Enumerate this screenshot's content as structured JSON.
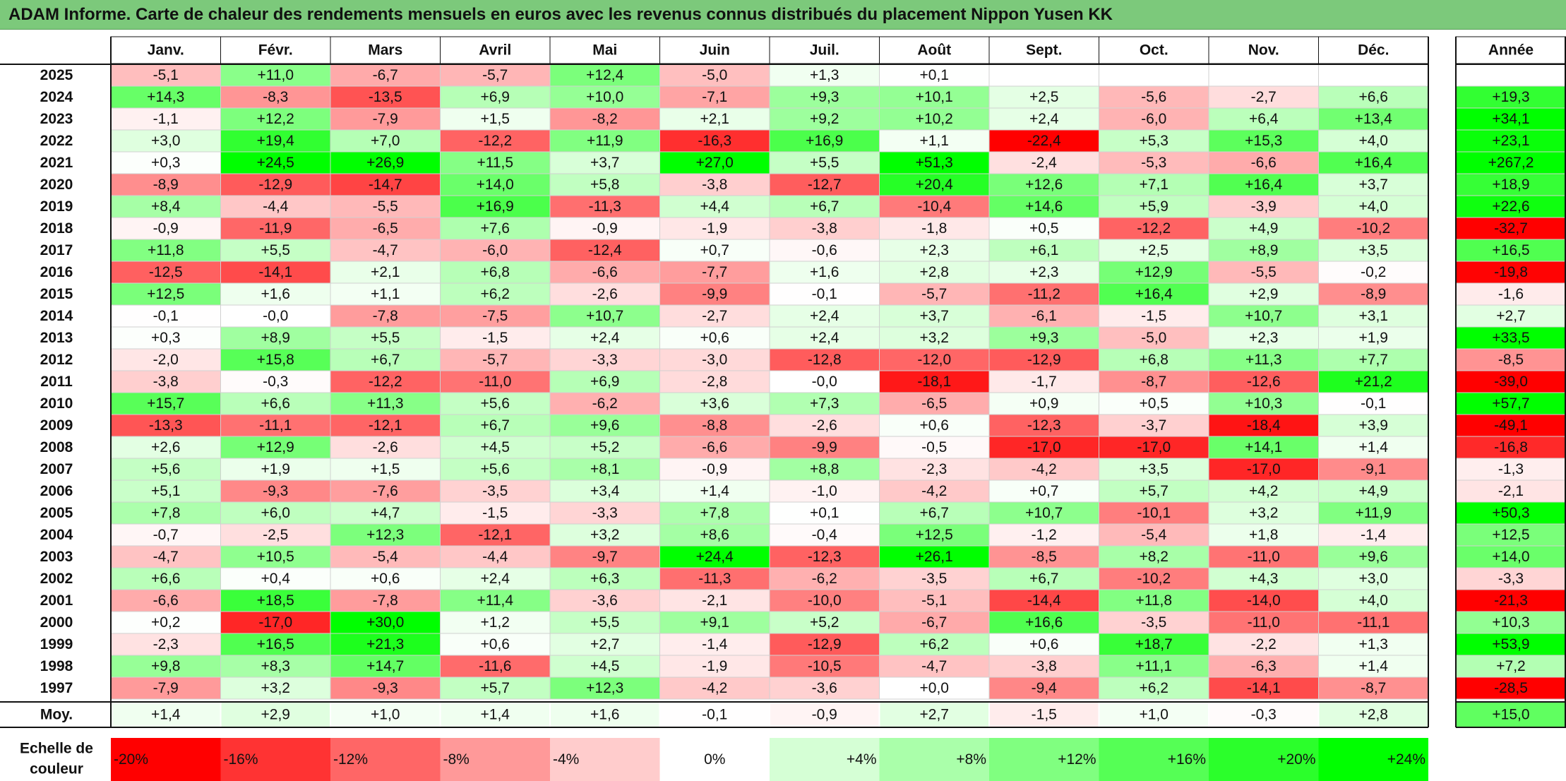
{
  "title": "ADAM Informe. Carte de chaleur des rendements mensuels en euros avec les revenus connus distribués du placement Nippon Yusen KK",
  "chart_data": {
    "type": "heatmap",
    "columns": [
      "Janv.",
      "Févr.",
      "Mars",
      "Avril",
      "Mai",
      "Juin",
      "Juil.",
      "Août",
      "Sept.",
      "Oct.",
      "Nov.",
      "Déc."
    ],
    "year_column": "Année",
    "years": [
      "2025",
      "2024",
      "2023",
      "2022",
      "2021",
      "2020",
      "2019",
      "2018",
      "2017",
      "2016",
      "2015",
      "2014",
      "2013",
      "2012",
      "2011",
      "2010",
      "2009",
      "2008",
      "2007",
      "2006",
      "2005",
      "2004",
      "2003",
      "2002",
      "2001",
      "2000",
      "1999",
      "1998",
      "1997"
    ],
    "values": [
      [
        -5.1,
        11.0,
        -6.7,
        -5.7,
        12.4,
        -5.0,
        1.3,
        0.1,
        null,
        null,
        null,
        null
      ],
      [
        14.3,
        -8.3,
        -13.5,
        6.9,
        10.0,
        -7.1,
        9.3,
        10.1,
        2.5,
        -5.6,
        -2.7,
        6.6
      ],
      [
        -1.1,
        12.2,
        -7.9,
        1.5,
        -8.2,
        2.1,
        9.2,
        10.2,
        2.4,
        -6.0,
        6.4,
        13.4
      ],
      [
        3.0,
        19.4,
        7.0,
        -12.2,
        11.9,
        -16.3,
        16.9,
        1.1,
        -22.4,
        5.3,
        15.3,
        4.0
      ],
      [
        0.3,
        24.5,
        26.9,
        11.5,
        3.7,
        27.0,
        5.5,
        51.3,
        -2.4,
        -5.3,
        -6.6,
        16.4
      ],
      [
        -8.9,
        -12.9,
        -14.7,
        14.0,
        5.8,
        -3.8,
        -12.7,
        20.4,
        12.6,
        7.1,
        16.4,
        3.7
      ],
      [
        8.4,
        -4.4,
        -5.5,
        16.9,
        -11.3,
        4.4,
        6.7,
        -10.4,
        14.6,
        5.9,
        -3.9,
        4.0
      ],
      [
        -0.9,
        -11.9,
        -6.5,
        7.6,
        -0.9,
        -1.9,
        -3.8,
        -1.8,
        0.5,
        -12.2,
        4.9,
        -10.2
      ],
      [
        11.8,
        5.5,
        -4.7,
        -6.0,
        -12.4,
        0.7,
        -0.6,
        2.3,
        6.1,
        2.5,
        8.9,
        3.5
      ],
      [
        -12.5,
        -14.1,
        2.1,
        6.8,
        -6.6,
        -7.7,
        1.6,
        2.8,
        2.3,
        12.9,
        -5.5,
        -0.2
      ],
      [
        12.5,
        1.6,
        1.1,
        6.2,
        -2.6,
        -9.9,
        -0.1,
        -5.7,
        -11.2,
        16.4,
        2.9,
        -8.9
      ],
      [
        -0.1,
        -0.0,
        -7.8,
        -7.5,
        10.7,
        -2.7,
        2.4,
        3.7,
        -6.1,
        -1.5,
        10.7,
        3.1
      ],
      [
        0.3,
        8.9,
        5.5,
        -1.5,
        2.4,
        0.6,
        2.4,
        3.2,
        9.3,
        -5.0,
        2.3,
        1.9
      ],
      [
        -2.0,
        15.8,
        6.7,
        -5.7,
        -3.3,
        -3.0,
        -12.8,
        -12.0,
        -12.9,
        6.8,
        11.3,
        7.7
      ],
      [
        -3.8,
        -0.3,
        -12.2,
        -11.0,
        6.9,
        -2.8,
        -0.0,
        -18.1,
        -1.7,
        -8.7,
        -12.6,
        21.2
      ],
      [
        15.7,
        6.6,
        11.3,
        5.6,
        -6.2,
        3.6,
        7.3,
        -6.5,
        0.9,
        0.5,
        10.3,
        -0.1
      ],
      [
        -13.3,
        -11.1,
        -12.1,
        6.7,
        9.6,
        -8.8,
        -2.6,
        0.6,
        -12.3,
        -3.7,
        -18.4,
        3.9
      ],
      [
        2.6,
        12.9,
        -2.6,
        4.5,
        5.2,
        -6.6,
        -9.9,
        -0.5,
        -17.0,
        -17.0,
        14.1,
        1.4
      ],
      [
        5.6,
        1.9,
        1.5,
        5.6,
        8.1,
        -0.9,
        8.8,
        -2.3,
        -4.2,
        3.5,
        -17.0,
        -9.1
      ],
      [
        5.1,
        -9.3,
        -7.6,
        -3.5,
        3.4,
        1.4,
        -1.0,
        -4.2,
        0.7,
        5.7,
        4.2,
        4.9
      ],
      [
        7.8,
        6.0,
        4.7,
        -1.5,
        -3.3,
        7.8,
        0.1,
        6.7,
        10.7,
        -10.1,
        3.2,
        11.9
      ],
      [
        -0.7,
        -2.5,
        12.3,
        -12.1,
        3.2,
        8.6,
        -0.4,
        12.5,
        -1.2,
        -5.4,
        1.8,
        -1.4
      ],
      [
        -4.7,
        10.5,
        -5.4,
        -4.4,
        -9.7,
        24.4,
        -12.3,
        26.1,
        -8.5,
        8.2,
        -11.0,
        9.6
      ],
      [
        6.6,
        0.4,
        0.6,
        2.4,
        6.3,
        -11.3,
        -6.2,
        -3.5,
        6.7,
        -10.2,
        4.3,
        3.0
      ],
      [
        -6.6,
        18.5,
        -7.8,
        11.4,
        -3.6,
        -2.1,
        -10.0,
        -5.1,
        -14.4,
        11.8,
        -14.0,
        4.0
      ],
      [
        0.2,
        -17.0,
        30.0,
        1.2,
        5.5,
        9.1,
        5.2,
        -6.7,
        16.6,
        -3.5,
        -11.0,
        -11.1
      ],
      [
        -2.3,
        16.5,
        21.3,
        0.6,
        2.7,
        -1.4,
        -12.9,
        6.2,
        0.6,
        18.7,
        -2.2,
        1.3
      ],
      [
        9.8,
        8.3,
        14.7,
        -11.6,
        4.5,
        -1.9,
        -10.5,
        -4.7,
        -3.8,
        11.1,
        -6.3,
        1.4
      ],
      [
        -7.9,
        3.2,
        -9.3,
        5.7,
        12.3,
        -4.2,
        -3.6,
        0.0,
        -9.4,
        6.2,
        -14.1,
        -8.7
      ]
    ],
    "year_totals": [
      null,
      19.3,
      34.1,
      23.1,
      267.2,
      18.9,
      22.6,
      -32.7,
      16.5,
      -19.8,
      -1.6,
      2.7,
      33.5,
      -8.5,
      -39.0,
      57.7,
      -49.1,
      -16.8,
      -1.3,
      -2.1,
      50.3,
      12.5,
      14.0,
      -3.3,
      -21.3,
      10.3,
      53.9,
      7.2,
      -28.5
    ],
    "average_label": "Moy.",
    "averages": [
      1.4,
      2.9,
      1.0,
      1.4,
      1.6,
      -0.1,
      -0.9,
      2.7,
      -1.5,
      1.0,
      -0.3,
      2.8
    ],
    "average_total": 15.0,
    "scale_label": [
      "Echelle de",
      "couleur"
    ],
    "scale_values": [
      -20,
      -16,
      -12,
      -8,
      -4,
      0,
      4,
      8,
      12,
      16,
      20,
      24
    ],
    "scale_labels": [
      "-20%",
      "-16%",
      "-12%",
      "-8%",
      "-4%",
      "0%",
      "+4%",
      "+8%",
      "+12%",
      "+16%",
      "+20%",
      "+24%"
    ],
    "colors": {
      "negative": "#ff0000",
      "neutral": "#ffffff",
      "positive": "#00ff00"
    }
  }
}
